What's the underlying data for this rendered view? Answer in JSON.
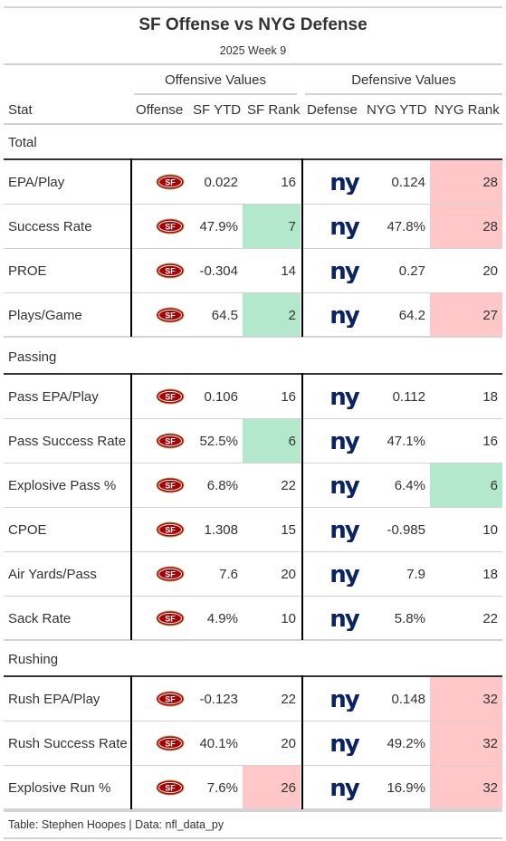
{
  "header": {
    "title": "SF Offense vs NYG Defense",
    "subtitle": "2025 Week 9"
  },
  "spanners": {
    "offense": "Offensive Values",
    "defense": "Defensive Values"
  },
  "columns": {
    "stat": "Stat",
    "offense": "Offense",
    "sf_ytd": "SF YTD",
    "sf_rank": "SF Rank",
    "defense": "Defense",
    "nyg_ytd": "NYG YTD",
    "nyg_rank": "NYG Rank"
  },
  "logos": {
    "offense": {
      "icon": "49ers-logo-icon",
      "text": "SF",
      "color": "#aa0000",
      "trim": "#b3995d"
    },
    "defense": {
      "icon": "giants-logo-icon",
      "text": "ny",
      "color": "#0b2265"
    }
  },
  "highlight_colors": {
    "good": "#b3e8cc",
    "bad": "#ffc7c7"
  },
  "groups": [
    {
      "label": "Total",
      "rows": [
        {
          "stat": "EPA/Play",
          "sf_ytd": "0.022",
          "sf_rank": "16",
          "sf_hl": "",
          "nyg_ytd": "0.124",
          "nyg_rank": "28",
          "nyg_hl": "bad"
        },
        {
          "stat": "Success Rate",
          "sf_ytd": "47.9%",
          "sf_rank": "7",
          "sf_hl": "good",
          "nyg_ytd": "47.8%",
          "nyg_rank": "28",
          "nyg_hl": "bad"
        },
        {
          "stat": "PROE",
          "sf_ytd": "-0.304",
          "sf_rank": "14",
          "sf_hl": "",
          "nyg_ytd": "0.27",
          "nyg_rank": "20",
          "nyg_hl": ""
        },
        {
          "stat": "Plays/Game",
          "sf_ytd": "64.5",
          "sf_rank": "2",
          "sf_hl": "good",
          "nyg_ytd": "64.2",
          "nyg_rank": "27",
          "nyg_hl": "bad"
        }
      ]
    },
    {
      "label": "Passing",
      "rows": [
        {
          "stat": "Pass EPA/Play",
          "sf_ytd": "0.106",
          "sf_rank": "16",
          "sf_hl": "",
          "nyg_ytd": "0.112",
          "nyg_rank": "18",
          "nyg_hl": ""
        },
        {
          "stat": "Pass Success Rate",
          "sf_ytd": "52.5%",
          "sf_rank": "6",
          "sf_hl": "good",
          "nyg_ytd": "47.1%",
          "nyg_rank": "16",
          "nyg_hl": ""
        },
        {
          "stat": "Explosive Pass %",
          "sf_ytd": "6.8%",
          "sf_rank": "22",
          "sf_hl": "",
          "nyg_ytd": "6.4%",
          "nyg_rank": "6",
          "nyg_hl": "good"
        },
        {
          "stat": "CPOE",
          "sf_ytd": "1.308",
          "sf_rank": "15",
          "sf_hl": "",
          "nyg_ytd": "-0.985",
          "nyg_rank": "10",
          "nyg_hl": ""
        },
        {
          "stat": "Air Yards/Pass",
          "sf_ytd": "7.6",
          "sf_rank": "20",
          "sf_hl": "",
          "nyg_ytd": "7.9",
          "nyg_rank": "18",
          "nyg_hl": ""
        },
        {
          "stat": "Sack Rate",
          "sf_ytd": "4.9%",
          "sf_rank": "10",
          "sf_hl": "",
          "nyg_ytd": "5.8%",
          "nyg_rank": "22",
          "nyg_hl": ""
        }
      ]
    },
    {
      "label": "Rushing",
      "rows": [
        {
          "stat": "Rush EPA/Play",
          "sf_ytd": "-0.123",
          "sf_rank": "22",
          "sf_hl": "",
          "nyg_ytd": "0.148",
          "nyg_rank": "32",
          "nyg_hl": "bad"
        },
        {
          "stat": "Rush Success Rate",
          "sf_ytd": "40.1%",
          "sf_rank": "20",
          "sf_hl": "",
          "nyg_ytd": "49.2%",
          "nyg_rank": "32",
          "nyg_hl": "bad"
        },
        {
          "stat": "Explosive Run %",
          "sf_ytd": "7.6%",
          "sf_rank": "26",
          "sf_hl": "bad",
          "nyg_ytd": "16.9%",
          "nyg_rank": "32",
          "nyg_hl": "bad"
        }
      ]
    }
  ],
  "footer": {
    "source": "Table: Stephen Hoopes | Data: nfl_data_py"
  }
}
